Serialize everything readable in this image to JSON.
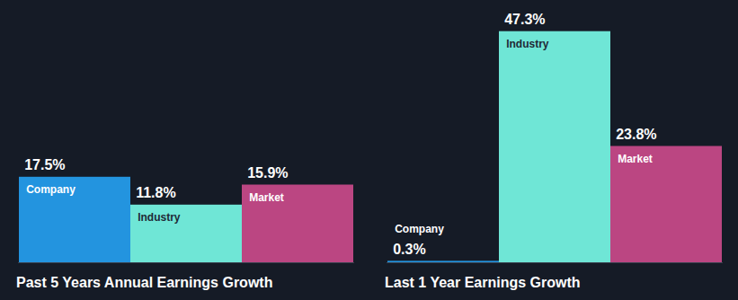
{
  "chart_data": [
    {
      "type": "bar",
      "title": "Past 5 Years Annual Earnings Growth",
      "categories": [
        "Company",
        "Industry",
        "Market"
      ],
      "values": [
        17.5,
        11.8,
        15.9
      ],
      "value_labels": [
        "17.5%",
        "11.8%",
        "15.9%"
      ],
      "colors": [
        "#2394df",
        "#6fe6d6",
        "#bb4682"
      ],
      "ylim": [
        0,
        50
      ],
      "data_labels": true,
      "tick_labels": false
    },
    {
      "type": "bar",
      "title": "Last 1 Year Earnings Growth",
      "categories": [
        "Company",
        "Industry",
        "Market"
      ],
      "values": [
        0.3,
        47.3,
        23.8
      ],
      "value_labels": [
        "0.3%",
        "47.3%",
        "23.8%"
      ],
      "colors": [
        "#2394df",
        "#6fe6d6",
        "#bb4682"
      ],
      "ylim": [
        0,
        50
      ],
      "data_labels": true,
      "tick_labels": false
    }
  ]
}
